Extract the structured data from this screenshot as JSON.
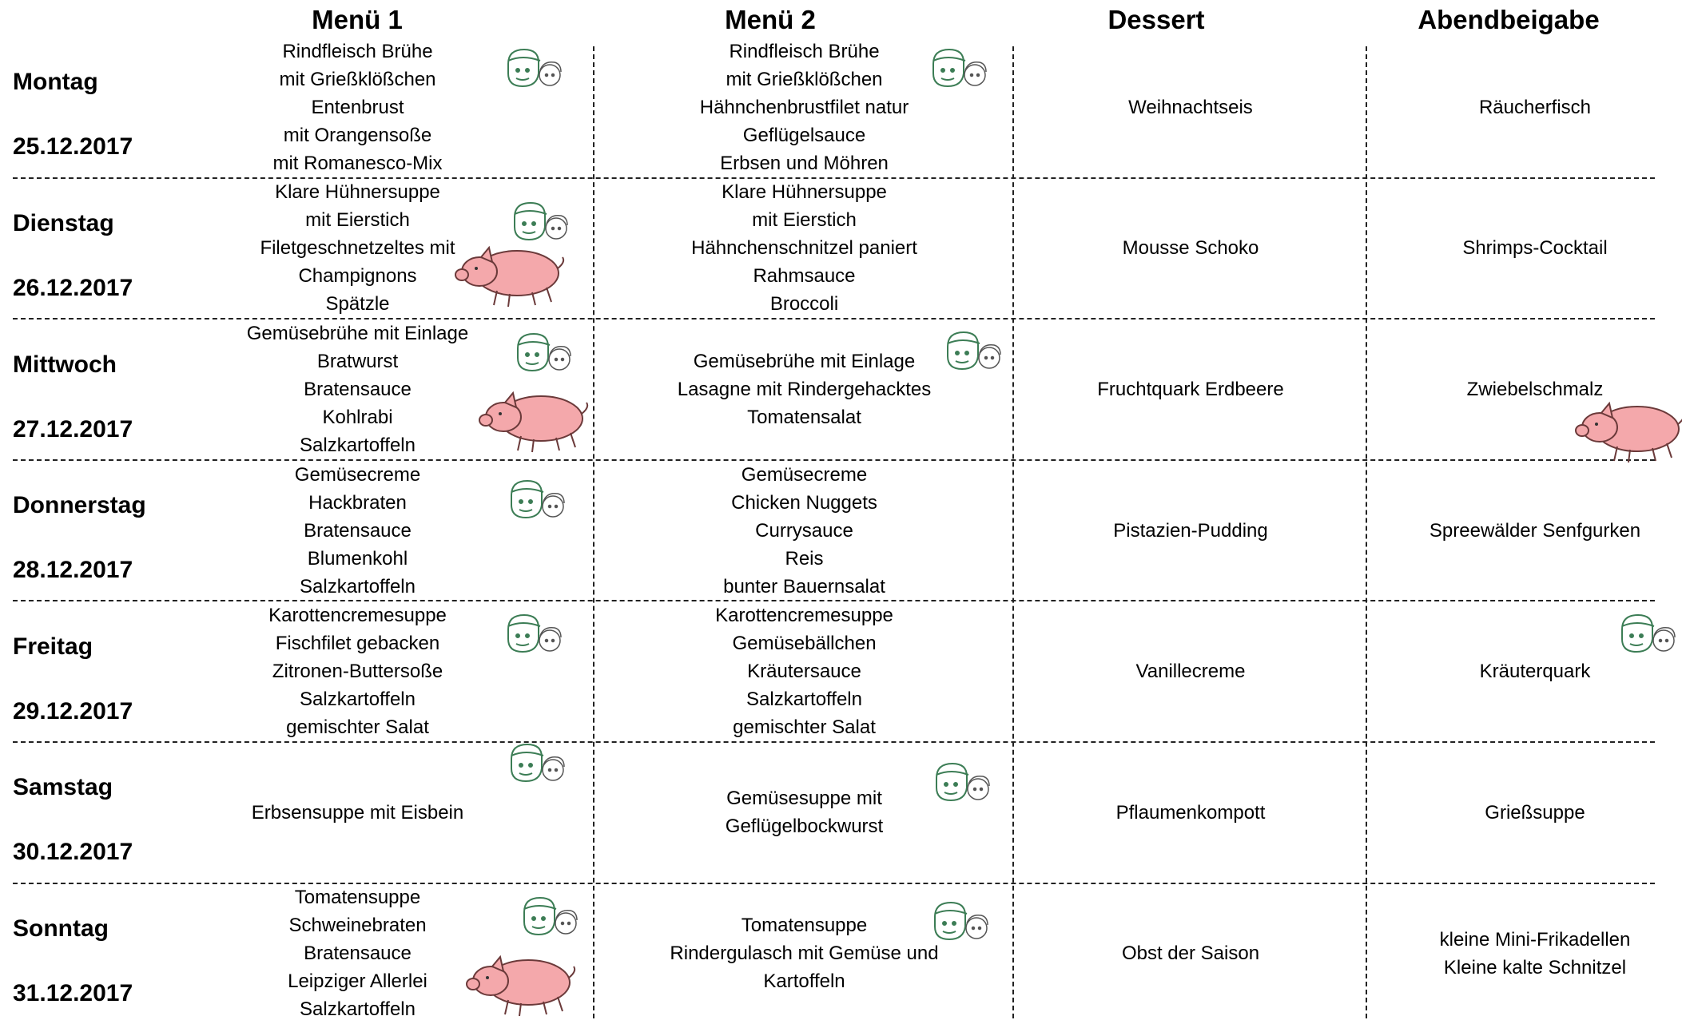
{
  "header": {
    "columns": [
      "Menü 1",
      "Menü 2",
      "Dessert",
      "Abendbeigabe"
    ]
  },
  "rows": [
    {
      "day": "Montag",
      "date": "25.12.2017",
      "menu1": [
        "Rindfleisch Brühe",
        "mit Grießklößchen",
        "Entenbrust",
        "mit Orangensoße",
        "mit Romanesco-Mix"
      ],
      "menu2": [
        "Rindfleisch Brühe",
        "mit Grießklößchen",
        "Hähnchenbrustfilet natur",
        "Geflügelsauce",
        "Erbsen und Möhren"
      ],
      "dessert": [
        "Weihnachtseis"
      ],
      "evening": [
        "Räucherfisch"
      ]
    },
    {
      "day": "Dienstag",
      "date": "26.12.2017",
      "menu1": [
        "Klare Hühnersuppe",
        "mit Eierstich",
        "Filetgeschnetzeltes mit",
        "Champignons",
        "Spätzle"
      ],
      "menu2": [
        "Klare Hühnersuppe",
        "mit Eierstich",
        "Hähnchenschnitzel paniert",
        "Rahmsauce",
        "Broccoli"
      ],
      "dessert": [
        "Mousse Schoko"
      ],
      "evening": [
        "Shrimps-Cocktail"
      ]
    },
    {
      "day": "Mittwoch",
      "date": "27.12.2017",
      "menu1": [
        "Gemüsebrühe mit Einlage",
        "Bratwurst",
        "Bratensauce",
        "Kohlrabi",
        "Salzkartoffeln"
      ],
      "menu2": [
        "Gemüsebrühe mit Einlage",
        "Lasagne mit Rindergehacktes",
        "Tomatensalat"
      ],
      "dessert": [
        "Fruchtquark Erdbeere"
      ],
      "evening": [
        "Zwiebelschmalz"
      ]
    },
    {
      "day": "Donnerstag",
      "date": "28.12.2017",
      "menu1": [
        "Gemüsecreme",
        "Hackbraten",
        "Bratensauce",
        "Blumenkohl",
        "Salzkartoffeln"
      ],
      "menu2": [
        "Gemüsecreme",
        "Chicken Nuggets",
        "Currysauce",
        "Reis",
        "bunter Bauernsalat"
      ],
      "dessert": [
        "Pistazien-Pudding"
      ],
      "evening": [
        "Spreewälder Senfgurken"
      ]
    },
    {
      "day": "Freitag",
      "date": "29.12.2017",
      "menu1": [
        "Karottencremesuppe",
        "Fischfilet gebacken",
        "Zitronen-Buttersoße",
        "Salzkartoffeln",
        "gemischter Salat"
      ],
      "menu2": [
        "Karottencremesuppe",
        "Gemüsebällchen",
        "Kräutersauce",
        "Salzkartoffeln",
        "gemischter Salat"
      ],
      "dessert": [
        "Vanillecreme"
      ],
      "evening": [
        "Kräuterquark"
      ]
    },
    {
      "day": "Samstag",
      "date": "30.12.2017",
      "menu1": [
        "Erbsensuppe mit Eisbein"
      ],
      "menu2": [
        "Gemüsesuppe mit",
        "Geflügelbockwurst"
      ],
      "dessert": [
        "Pflaumenkompott"
      ],
      "evening": [
        "Grießsuppe"
      ]
    },
    {
      "day": "Sonntag",
      "date": "31.12.2017",
      "menu1": [
        "Tomatensuppe",
        "Schweinebraten",
        "Bratensauce",
        "Leipziger Allerlei",
        "Salzkartoffeln"
      ],
      "menu2": [
        "Tomatensuppe",
        "Rindergulasch mit Gemüse und",
        "Kartoffeln"
      ],
      "dessert": [
        "Obst der Saison"
      ],
      "evening": [
        "kleine Mini-Frikadellen",
        "Kleine kalte Schnitzel"
      ]
    }
  ]
}
